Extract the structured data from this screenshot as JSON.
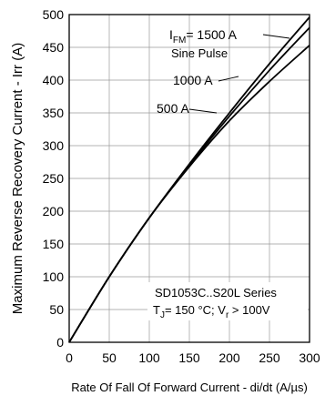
{
  "chart_data": {
    "type": "line",
    "title": "",
    "xlabel": "Rate Of Fall Of Forward Current - di/dt (A/µs)",
    "ylabel": "Maximum Reverse Recovery Current - Irr (A)",
    "xlim": [
      0,
      300
    ],
    "ylim": [
      0,
      500
    ],
    "x_ticks": [
      "0",
      "50",
      "100",
      "150",
      "200",
      "250",
      "300"
    ],
    "y_ticks": [
      "0",
      "50",
      "100",
      "150",
      "200",
      "250",
      "300",
      "350",
      "400",
      "450",
      "500"
    ],
    "grid": true,
    "series": [
      {
        "name": "IFM = 1500 A",
        "x": [
          0,
          50,
          100,
          150,
          200,
          250,
          300
        ],
        "values": [
          0,
          100,
          190,
          272,
          350,
          425,
          496
        ]
      },
      {
        "name": "1000 A",
        "x": [
          0,
          50,
          100,
          150,
          200,
          250,
          300
        ],
        "values": [
          0,
          100,
          190,
          270,
          345,
          415,
          480
        ]
      },
      {
        "name": "500 A",
        "x": [
          0,
          50,
          100,
          150,
          200,
          250,
          300
        ],
        "values": [
          0,
          100,
          190,
          268,
          338,
          398,
          453
        ]
      }
    ],
    "annotations": {
      "ifm_prefix": "I",
      "ifm_sub": "FM",
      "ifm_value": "= 1500 A",
      "sine_pulse": "Sine Pulse",
      "label_1000": "1000 A",
      "label_500": "500 A"
    },
    "info_box": {
      "series_line": "SD1053C..S20L Series",
      "tj_prefix": "T",
      "tj_sub": "J",
      "tj_value": "= 150 °C; V",
      "vr_sub": "r",
      "vr_value": " > 100V"
    }
  }
}
